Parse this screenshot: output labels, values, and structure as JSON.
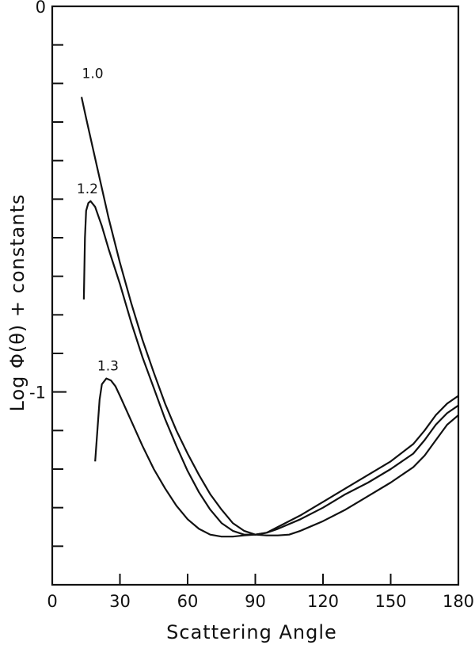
{
  "chart_data": {
    "type": "line",
    "title": "",
    "xlabel": "Scattering Angle",
    "ylabel": "Log Φ(θ) + constants",
    "xlim": [
      0,
      180
    ],
    "ylim": [
      -1.5,
      0
    ],
    "x_ticks": [
      0,
      30,
      60,
      90,
      120,
      150,
      180
    ],
    "y_ticks_labeled": [
      0,
      -1
    ],
    "y_tick_labels": [
      "0",
      "-1"
    ],
    "y_minor_tick_step": 0.1,
    "grid": false,
    "legend": "none",
    "series": [
      {
        "name": "1.0",
        "points": [
          [
            13,
            -0.235
          ],
          [
            15,
            -0.29
          ],
          [
            20,
            -0.42
          ],
          [
            25,
            -0.55
          ],
          [
            30,
            -0.665
          ],
          [
            35,
            -0.77
          ],
          [
            40,
            -0.865
          ],
          [
            45,
            -0.95
          ],
          [
            50,
            -1.03
          ],
          [
            55,
            -1.1
          ],
          [
            60,
            -1.16
          ],
          [
            65,
            -1.215
          ],
          [
            70,
            -1.265
          ],
          [
            75,
            -1.305
          ],
          [
            80,
            -1.34
          ],
          [
            85,
            -1.36
          ],
          [
            90,
            -1.37
          ],
          [
            95,
            -1.365
          ],
          [
            100,
            -1.35
          ],
          [
            110,
            -1.32
          ],
          [
            120,
            -1.285
          ],
          [
            130,
            -1.25
          ],
          [
            140,
            -1.215
          ],
          [
            150,
            -1.18
          ],
          [
            160,
            -1.135
          ],
          [
            165,
            -1.1
          ],
          [
            170,
            -1.06
          ],
          [
            175,
            -1.03
          ],
          [
            180,
            -1.01
          ]
        ]
      },
      {
        "name": "1.2",
        "points": [
          [
            14,
            -0.76
          ],
          [
            14.5,
            -0.6
          ],
          [
            15,
            -0.53
          ],
          [
            16,
            -0.51
          ],
          [
            17,
            -0.505
          ],
          [
            19,
            -0.52
          ],
          [
            22,
            -0.57
          ],
          [
            25,
            -0.63
          ],
          [
            30,
            -0.72
          ],
          [
            35,
            -0.82
          ],
          [
            40,
            -0.91
          ],
          [
            45,
            -0.99
          ],
          [
            50,
            -1.07
          ],
          [
            55,
            -1.14
          ],
          [
            60,
            -1.205
          ],
          [
            65,
            -1.26
          ],
          [
            70,
            -1.305
          ],
          [
            75,
            -1.34
          ],
          [
            80,
            -1.36
          ],
          [
            85,
            -1.37
          ],
          [
            90,
            -1.37
          ],
          [
            95,
            -1.365
          ],
          [
            100,
            -1.355
          ],
          [
            110,
            -1.33
          ],
          [
            120,
            -1.3
          ],
          [
            130,
            -1.265
          ],
          [
            140,
            -1.235
          ],
          [
            150,
            -1.2
          ],
          [
            160,
            -1.16
          ],
          [
            165,
            -1.125
          ],
          [
            170,
            -1.085
          ],
          [
            175,
            -1.055
          ],
          [
            180,
            -1.035
          ]
        ]
      },
      {
        "name": "1.3",
        "points": [
          [
            19,
            -1.18
          ],
          [
            20,
            -1.1
          ],
          [
            21,
            -1.02
          ],
          [
            22,
            -0.98
          ],
          [
            24,
            -0.965
          ],
          [
            26,
            -0.97
          ],
          [
            28,
            -0.985
          ],
          [
            30,
            -1.01
          ],
          [
            35,
            -1.075
          ],
          [
            40,
            -1.14
          ],
          [
            45,
            -1.2
          ],
          [
            50,
            -1.25
          ],
          [
            55,
            -1.295
          ],
          [
            60,
            -1.33
          ],
          [
            65,
            -1.355
          ],
          [
            70,
            -1.37
          ],
          [
            75,
            -1.375
          ],
          [
            80,
            -1.375
          ],
          [
            85,
            -1.372
          ],
          [
            90,
            -1.37
          ],
          [
            95,
            -1.372
          ],
          [
            100,
            -1.372
          ],
          [
            105,
            -1.37
          ],
          [
            110,
            -1.36
          ],
          [
            120,
            -1.335
          ],
          [
            130,
            -1.305
          ],
          [
            140,
            -1.27
          ],
          [
            150,
            -1.235
          ],
          [
            160,
            -1.195
          ],
          [
            165,
            -1.165
          ],
          [
            170,
            -1.125
          ],
          [
            175,
            -1.085
          ],
          [
            180,
            -1.06
          ]
        ]
      }
    ]
  }
}
